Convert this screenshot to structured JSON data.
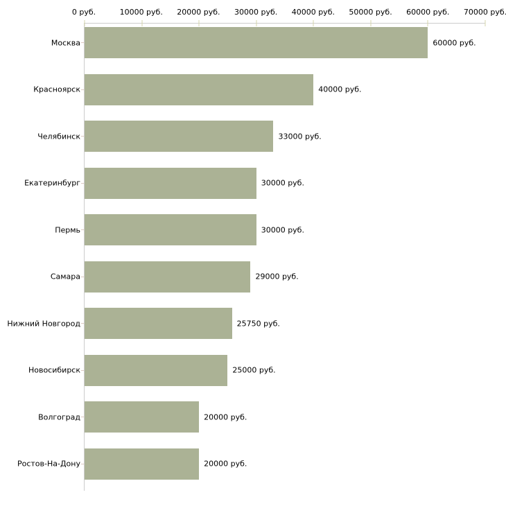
{
  "chart_data": {
    "type": "bar",
    "orientation": "horizontal",
    "title": "",
    "xlabel": "",
    "ylabel": "",
    "unit": "руб.",
    "xlim": [
      0,
      70000
    ],
    "x_tick_step": 10000,
    "x_tick_labels": [
      "0 руб.",
      "10000 руб.",
      "20000 руб.",
      "30000 руб.",
      "40000 руб.",
      "50000 руб.",
      "60000 руб.",
      "70000 руб."
    ],
    "categories": [
      "Москва",
      "Красноярск",
      "Челябинск",
      "Екатеринбург",
      "Пермь",
      "Самара",
      "Нижний Новгород",
      "Новосибирск",
      "Волгоград",
      "Ростов-На-Дону"
    ],
    "values": [
      60000,
      40000,
      33000,
      30000,
      30000,
      29000,
      25750,
      25000,
      20000,
      20000
    ],
    "bar_labels": [
      "60000 руб.",
      "40000 руб.",
      "33000 руб.",
      "30000 руб.",
      "30000 руб.",
      "29000 руб.",
      "25750 руб.",
      "25000 руб.",
      "20000 руб.",
      "20000 руб."
    ],
    "grid": false,
    "legend": "none",
    "colors": {
      "bar": "#abb295",
      "axis_line": "#cccccc",
      "x_tick": "#d6d6ab",
      "y_tick": "#dcc8c0",
      "text": "#000000",
      "background": "#ffffff"
    }
  }
}
